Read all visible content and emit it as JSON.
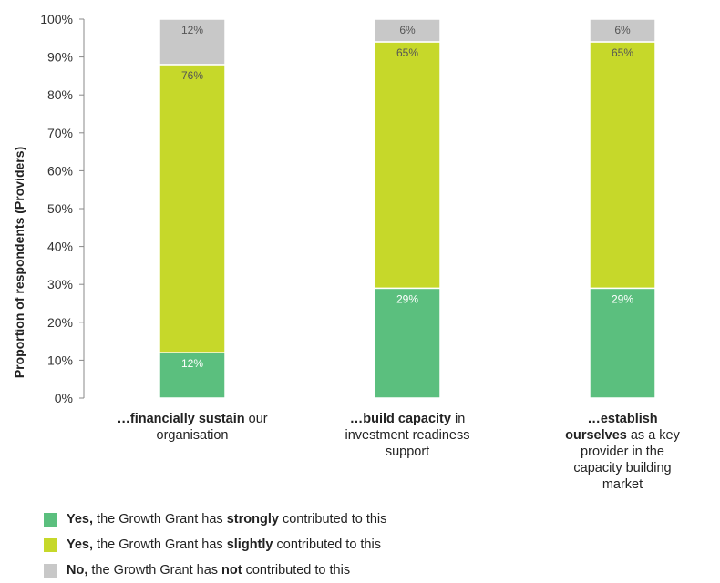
{
  "chart_data": {
    "type": "bar",
    "stacked": true,
    "ylabel": "Proportion of respondents (Providers)",
    "ylim": [
      0,
      100
    ],
    "yticks": [
      "0%",
      "10%",
      "20%",
      "30%",
      "40%",
      "50%",
      "60%",
      "70%",
      "80%",
      "90%",
      "100%"
    ],
    "categories": [
      {
        "bold": "…financially sustain",
        "rest": " our organisation"
      },
      {
        "bold": "…build capacity",
        "rest": " in investment readiness support"
      },
      {
        "bold": "…establish ourselves",
        "rest": " as a key provider in the capacity building market"
      }
    ],
    "series": [
      {
        "name": "strongly",
        "color": "#5bbf7e",
        "values": [
          12,
          29,
          29
        ],
        "labels": [
          "12%",
          "29%",
          "29%"
        ]
      },
      {
        "name": "slightly",
        "color": "#c6d82a",
        "values": [
          76,
          65,
          65
        ],
        "labels": [
          "76%",
          "65%",
          "65%"
        ]
      },
      {
        "name": "not",
        "color": "#c8c8c8",
        "values": [
          12,
          6,
          6
        ],
        "labels": [
          "12%",
          "6%",
          "6%"
        ]
      }
    ],
    "legend": [
      {
        "pre": "Yes,",
        "mid": " the Growth Grant has ",
        "key": "strongly",
        "post": " contributed to this",
        "color": "#5bbf7e"
      },
      {
        "pre": "Yes,",
        "mid": " the Growth Grant has ",
        "key": "slightly",
        "post": " contributed to this",
        "color": "#c6d82a"
      },
      {
        "pre": "No,",
        "mid": " the Growth Grant has ",
        "key": "not",
        "post": " contributed to this",
        "color": "#c8c8c8"
      }
    ],
    "grid": false,
    "legend_position": "bottom"
  }
}
